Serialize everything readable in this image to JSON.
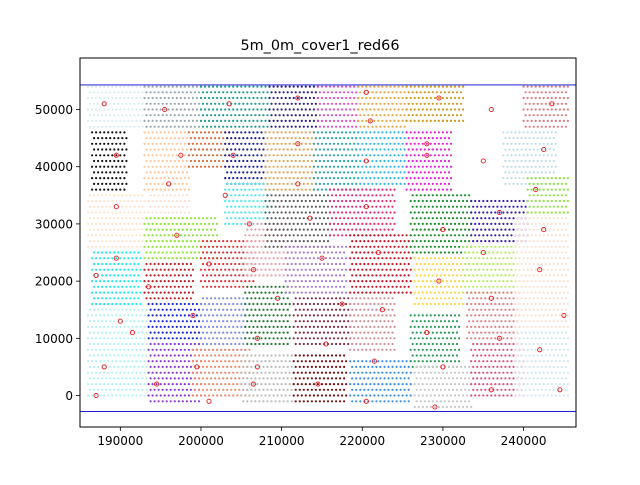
{
  "chart_data": {
    "type": "scatter",
    "title": "5m_0m_cover1_red66",
    "xlabel": "",
    "ylabel": "",
    "xlim": [
      185000,
      246500
    ],
    "ylim": [
      -5500,
      59000
    ],
    "x_ticks": [
      190000,
      200000,
      210000,
      220000,
      230000,
      240000
    ],
    "y_ticks": [
      0,
      10000,
      20000,
      30000,
      40000,
      50000
    ],
    "x_tick_labels": [
      "190000",
      "200000",
      "210000",
      "220000",
      "230000",
      "240000"
    ],
    "y_tick_labels": [
      "0",
      "10000",
      "20000",
      "30000",
      "40000",
      "50000"
    ],
    "grid": false,
    "legend": "none",
    "point_spacing": [
      500,
      1000
    ],
    "extent_lines": {
      "y": [
        -2800,
        54300
      ],
      "color": "#0000cc"
    },
    "cluster_regions": [
      {
        "x": [
          186000,
          193500
        ],
        "y": [
          47000,
          54000
        ],
        "color": "#d8ecee"
      },
      {
        "x": [
          186500,
          190800
        ],
        "y": [
          35500,
          46500
        ],
        "color": "#111111"
      },
      {
        "x": [
          186000,
          193000
        ],
        "y": [
          26000,
          35000
        ],
        "color": "#fde5cc"
      },
      {
        "x": [
          186500,
          192500
        ],
        "y": [
          16000,
          25000
        ],
        "color": "#22e6ea"
      },
      {
        "x": [
          186000,
          193500
        ],
        "y": [
          0,
          15000
        ],
        "color": "#b5f0f0"
      },
      {
        "x": [
          193000,
          200000
        ],
        "y": [
          47000,
          54000
        ],
        "color": "#9aa7ad"
      },
      {
        "x": [
          193000,
          198500
        ],
        "y": [
          36000,
          46000
        ],
        "color": "#f9c89e"
      },
      {
        "x": [
          198500,
          203500
        ],
        "y": [
          40000,
          46000
        ],
        "color": "#d96b3a"
      },
      {
        "x": [
          193500,
          198500
        ],
        "y": [
          27500,
          35500
        ],
        "color": "#f6e1d4"
      },
      {
        "x": [
          193000,
          202000
        ],
        "y": [
          24000,
          31000
        ],
        "color": "#8ee23a"
      },
      {
        "x": [
          193000,
          199000
        ],
        "y": [
          17000,
          23000
        ],
        "color": "#b8212d"
      },
      {
        "x": [
          193500,
          200000
        ],
        "y": [
          10000,
          16500
        ],
        "color": "#1f2bd8"
      },
      {
        "x": [
          193500,
          200000
        ],
        "y": [
          -1000,
          9000
        ],
        "color": "#8a3ad6"
      },
      {
        "x": [
          200000,
          208500
        ],
        "y": [
          47000,
          54000
        ],
        "color": "#1a9e8e"
      },
      {
        "x": [
          203000,
          208000
        ],
        "y": [
          36500,
          46500
        ],
        "color": "#1b1f9e"
      },
      {
        "x": [
          203000,
          209000
        ],
        "y": [
          30000,
          37000
        ],
        "color": "#3deef0"
      },
      {
        "x": [
          200000,
          206500
        ],
        "y": [
          18500,
          27000
        ],
        "color": "#e2323a"
      },
      {
        "x": [
          200000,
          205500
        ],
        "y": [
          8000,
          17000
        ],
        "color": "#7f8be8"
      },
      {
        "x": [
          199000,
          206000
        ],
        "y": [
          0,
          8500
        ],
        "color": "#f28a6a"
      },
      {
        "x": [
          205500,
          210500
        ],
        "y": [
          21000,
          30000
        ],
        "color": "#e7a0aa"
      },
      {
        "x": [
          205500,
          211000
        ],
        "y": [
          9000,
          19000
        ],
        "color": "#1a7a2a"
      },
      {
        "x": [
          205000,
          211500
        ],
        "y": [
          -1000,
          7000
        ],
        "color": "#b9b9b9"
      },
      {
        "x": [
          208500,
          214500
        ],
        "y": [
          47000,
          54000
        ],
        "color": "#2e1f8c"
      },
      {
        "x": [
          208000,
          214000
        ],
        "y": [
          36000,
          46000
        ],
        "color": "#e8a24e"
      },
      {
        "x": [
          208000,
          216000
        ],
        "y": [
          26000,
          35000
        ],
        "color": "#5e5e5e"
      },
      {
        "x": [
          210500,
          218000
        ],
        "y": [
          18000,
          26000
        ],
        "color": "#a87bd9"
      },
      {
        "x": [
          211500,
          218500
        ],
        "y": [
          9000,
          17000
        ],
        "color": "#8a2a44"
      },
      {
        "x": [
          211500,
          218000
        ],
        "y": [
          -1000,
          7500
        ],
        "color": "#7a0e12"
      },
      {
        "x": [
          214500,
          219500
        ],
        "y": [
          47000,
          54000
        ],
        "color": "#e04ec8"
      },
      {
        "x": [
          214000,
          219500
        ],
        "y": [
          36000,
          46500
        ],
        "color": "#26a6a6"
      },
      {
        "x": [
          216000,
          224000
        ],
        "y": [
          28000,
          36500
        ],
        "color": "#e02d75"
      },
      {
        "x": [
          218500,
          226000
        ],
        "y": [
          18000,
          28000
        ],
        "color": "#c4172a"
      },
      {
        "x": [
          218500,
          224000
        ],
        "y": [
          8000,
          17000
        ],
        "color": "#c98f96"
      },
      {
        "x": [
          218500,
          226000
        ],
        "y": [
          -1000,
          6500
        ],
        "color": "#3a8de6"
      },
      {
        "x": [
          219500,
          225500
        ],
        "y": [
          47000,
          54000
        ],
        "color": "#e2a84a"
      },
      {
        "x": [
          219500,
          225500
        ],
        "y": [
          36500,
          46500
        ],
        "color": "#32b5e6"
      },
      {
        "x": [
          225500,
          232500
        ],
        "y": [
          48000,
          54000
        ],
        "color": "#d19a1a"
      },
      {
        "x": [
          225500,
          231000
        ],
        "y": [
          36000,
          46000
        ],
        "color": "#e022d8"
      },
      {
        "x": [
          226000,
          233500
        ],
        "y": [
          25000,
          35000
        ],
        "color": "#1a8e2a"
      },
      {
        "x": [
          226500,
          232500
        ],
        "y": [
          16000,
          24500
        ],
        "color": "#f5d84a"
      },
      {
        "x": [
          226000,
          232000
        ],
        "y": [
          5000,
          14000
        ],
        "color": "#2a9a5a"
      },
      {
        "x": [
          226500,
          233500
        ],
        "y": [
          -2000,
          5000
        ],
        "color": "#c8c8c8"
      },
      {
        "x": [
          233500,
          240500
        ],
        "y": [
          26500,
          34000
        ],
        "color": "#3a1ab8"
      },
      {
        "x": [
          232500,
          239000
        ],
        "y": [
          18000,
          26000
        ],
        "color": "#b6ee5a"
      },
      {
        "x": [
          233000,
          239500
        ],
        "y": [
          9500,
          18000
        ],
        "color": "#e57e84"
      },
      {
        "x": [
          233500,
          240000
        ],
        "y": [
          0,
          9000
        ],
        "color": "#e24e7e"
      },
      {
        "x": [
          237500,
          244000
        ],
        "y": [
          36500,
          46000
        ],
        "color": "#bcdfe6"
      },
      {
        "x": [
          240000,
          245500
        ],
        "y": [
          47000,
          54000
        ],
        "color": "#e6787e"
      },
      {
        "x": [
          240500,
          245500
        ],
        "y": [
          32000,
          38500
        ],
        "color": "#8ae83a"
      },
      {
        "x": [
          239000,
          245500
        ],
        "y": [
          12000,
          31000
        ],
        "color": "#fbe2cf"
      },
      {
        "x": [
          239000,
          245500
        ],
        "y": [
          0,
          11500
        ],
        "color": "#cfe9ee"
      }
    ],
    "centroids": [
      [
        188000,
        51000
      ],
      [
        195500,
        50000
      ],
      [
        203500,
        51000
      ],
      [
        212000,
        52000
      ],
      [
        220500,
        53000
      ],
      [
        229500,
        52000
      ],
      [
        236000,
        50000
      ],
      [
        243500,
        51000
      ],
      [
        189500,
        42000
      ],
      [
        197500,
        42000
      ],
      [
        204000,
        42000
      ],
      [
        212000,
        44000
      ],
      [
        221000,
        48000
      ],
      [
        228000,
        44000
      ],
      [
        242500,
        43000
      ],
      [
        196000,
        37000
      ],
      [
        212000,
        37000
      ],
      [
        220500,
        41000
      ],
      [
        228000,
        42000
      ],
      [
        235000,
        41000
      ],
      [
        241500,
        36000
      ],
      [
        189500,
        33000
      ],
      [
        203000,
        35000
      ],
      [
        206000,
        30000
      ],
      [
        213500,
        31000
      ],
      [
        220500,
        33000
      ],
      [
        230000,
        29000
      ],
      [
        237000,
        32000
      ],
      [
        242500,
        29000
      ],
      [
        197000,
        28000
      ],
      [
        189500,
        24000
      ],
      [
        201000,
        23000
      ],
      [
        206500,
        22000
      ],
      [
        215000,
        24000
      ],
      [
        222000,
        25000
      ],
      [
        235000,
        25000
      ],
      [
        187000,
        21000
      ],
      [
        193500,
        19000
      ],
      [
        229500,
        20000
      ],
      [
        242000,
        22000
      ],
      [
        209500,
        17000
      ],
      [
        217500,
        16000
      ],
      [
        222500,
        15000
      ],
      [
        236000,
        17000
      ],
      [
        190000,
        13000
      ],
      [
        199000,
        14000
      ],
      [
        191500,
        11000
      ],
      [
        207000,
        10000
      ],
      [
        215500,
        9000
      ],
      [
        228000,
        11000
      ],
      [
        237000,
        10000
      ],
      [
        245000,
        14000
      ],
      [
        188000,
        5000
      ],
      [
        199500,
        5000
      ],
      [
        207000,
        5000
      ],
      [
        221500,
        6000
      ],
      [
        230000,
        5000
      ],
      [
        242000,
        8000
      ],
      [
        187000,
        0
      ],
      [
        194500,
        2000
      ],
      [
        201000,
        -1000
      ],
      [
        206500,
        2000
      ],
      [
        214500,
        2000
      ],
      [
        220500,
        -1000
      ],
      [
        229000,
        -2000
      ],
      [
        236000,
        1000
      ],
      [
        244500,
        1000
      ]
    ]
  }
}
